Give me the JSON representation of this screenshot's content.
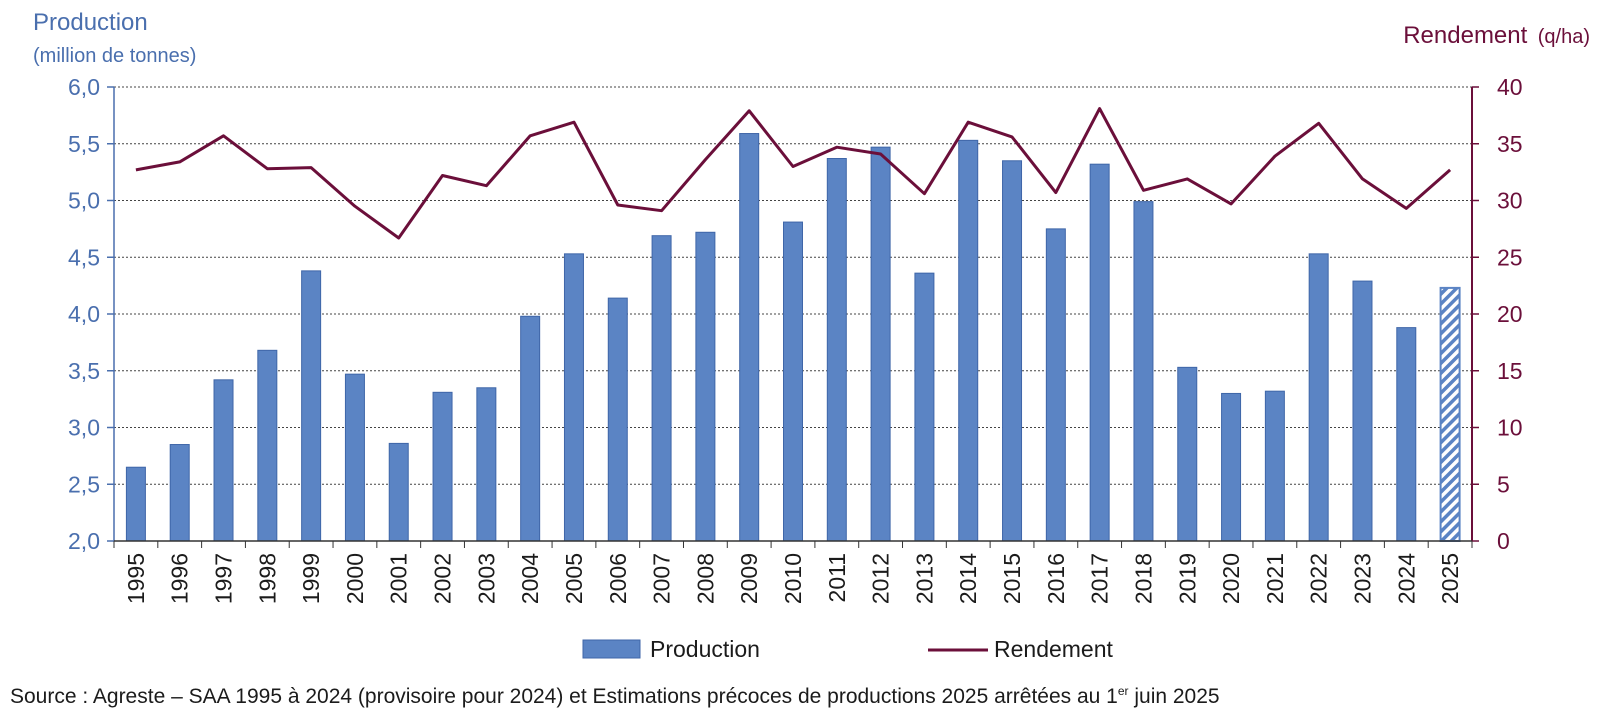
{
  "chart_data": {
    "type": "bar",
    "left_axis": {
      "title": "Production",
      "subtitle": "(million de tonnes)",
      "ylim": [
        2.0,
        6.0
      ],
      "ticks": [
        "2,0",
        "2,5",
        "3,0",
        "3,5",
        "4,0",
        "4,5",
        "5,0",
        "5,5",
        "6,0"
      ]
    },
    "right_axis": {
      "title": "Rendement",
      "unit": "(q/ha)",
      "ylim": [
        0,
        40
      ],
      "ticks": [
        "0",
        "5",
        "10",
        "15",
        "20",
        "25",
        "30",
        "35",
        "40"
      ]
    },
    "categories": [
      "1995",
      "1996",
      "1997",
      "1998",
      "1999",
      "2000",
      "2001",
      "2002",
      "2003",
      "2004",
      "2005",
      "2006",
      "2007",
      "2008",
      "2009",
      "2010",
      "2011",
      "2012",
      "2013",
      "2014",
      "2015",
      "2016",
      "2017",
      "2018",
      "2019",
      "2020",
      "2021",
      "2022",
      "2023",
      "2024",
      "2025"
    ],
    "series": [
      {
        "name": "Production",
        "kind": "bar",
        "axis": "left",
        "color": "#5b84c4",
        "hatched_last": true,
        "values": [
          2.65,
          2.85,
          3.42,
          3.68,
          4.38,
          3.47,
          2.86,
          3.31,
          3.35,
          3.98,
          4.53,
          4.14,
          4.69,
          4.72,
          5.59,
          4.81,
          5.37,
          5.47,
          4.36,
          5.53,
          5.35,
          4.75,
          5.32,
          4.99,
          3.53,
          3.3,
          3.32,
          4.53,
          4.29,
          3.88,
          4.23
        ]
      },
      {
        "name": "Rendement",
        "kind": "line",
        "axis": "right",
        "color": "#6b0f3a",
        "values": [
          32.7,
          33.4,
          35.7,
          32.8,
          32.9,
          29.5,
          26.7,
          32.2,
          31.3,
          35.7,
          36.9,
          29.6,
          29.1,
          33.6,
          37.9,
          33.0,
          34.7,
          34.1,
          30.6,
          36.9,
          35.6,
          30.7,
          38.1,
          30.9,
          31.9,
          29.7,
          33.9,
          36.8,
          31.9,
          29.3,
          32.7
        ]
      }
    ],
    "grid": true,
    "legend": {
      "position": "bottom",
      "items": [
        "Production",
        "Rendement"
      ]
    }
  },
  "source": {
    "text": "Source : Agreste – SAA 1995 à 2024 (provisoire pour 2024) et Estimations précoces de productions 2025 arrêtées au 1",
    "sup": "er",
    "tail": " juin 2025"
  }
}
